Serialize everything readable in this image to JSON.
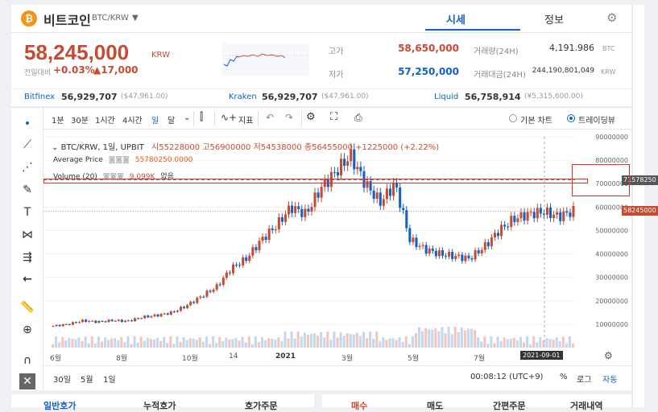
{
  "header": {
    "coin_symbol": "₿",
    "coin_name": "비트코인",
    "coin_code": "BTC/KRW",
    "tabs": [
      "시세",
      "정보"
    ],
    "price": "58,245,000",
    "price_unit": "KRW",
    "change_label": "전일대비",
    "change_pct": "+0.03%",
    "change_abs": "▲17,000",
    "high_label": "고가",
    "high_value": "58,650,000",
    "low_label": "저가",
    "low_value": "57,250,000",
    "volume_label": "거래량(24H)",
    "volume_value": "4,191.986",
    "volume_unit": "BTC",
    "amount_label": "거래대금(24H)",
    "amount_value": "244,190,801,049",
    "amount_unit": "KRW"
  },
  "exchanges": [
    {
      "name": "Bitfinex",
      "value": "56,929,707",
      "sub": "($47,961.00)"
    },
    {
      "name": "Kraken",
      "value": "56,929,707",
      "sub": "($47,961.00)"
    },
    {
      "name": "Liquid",
      "value": "56,758,914",
      "sub": "(¥5,315,600.00)"
    }
  ],
  "toolbar": {
    "intervals": [
      "1분",
      "30분",
      "1시간",
      "4시간",
      "일",
      "달"
    ],
    "indicator_label": "지표",
    "basic_chart": "기본 차트",
    "trading_view": "트레이딩뷰"
  },
  "legend": {
    "pair": "BTC/KRW, 1일, UPBIT",
    "ohlc": "시55228000 고56900000 저54538000 종56455000 +1225000 (+2.22%)",
    "avg_label": "Average Price",
    "avg_value": "55780250.0000",
    "vol_label": "Volume (20)",
    "vol_value": "9.099K",
    "vol_extra": "없음"
  },
  "chart_data": {
    "type": "line",
    "y_ticks": [
      "90000000",
      "80000000",
      "70000000",
      "60000000",
      "50000000",
      "40000000",
      "30000000",
      "20000000",
      "10000000"
    ],
    "x_ticks": [
      "6월",
      "8월",
      "10월",
      "14",
      "2021",
      "3월",
      "5월",
      "7월",
      "2021-09-01"
    ],
    "last_price_tag": "58245000",
    "cursor_price_tag": "71578250",
    "series": [
      {
        "values": [
          9200000,
          10000000,
          11500000,
          11000000,
          11600000,
          11300000,
          13000000,
          13800000,
          15000000,
          18000000,
          22000000,
          26000000,
          34000000,
          38000000,
          46000000,
          52000000,
          60000000,
          57000000,
          68000000,
          75000000,
          82000000,
          70000000,
          62000000,
          70000000,
          46000000,
          42000000,
          40000000,
          39000000,
          38000000,
          43000000,
          50000000,
          55000000,
          57000000,
          58000000,
          56000000,
          58245000
        ]
      }
    ]
  },
  "bottom_bar": {
    "ranges": [
      "30일",
      "5월",
      "1일"
    ],
    "time": "00:08:12 (UTC+9)",
    "pct": "%",
    "log": "로그",
    "auto": "자동"
  },
  "bottom_tabs_left": [
    "일반호가",
    "누적호가",
    "호가주문"
  ],
  "bottom_tabs_right": [
    "매수",
    "매도",
    "간편주문",
    "거래내역"
  ]
}
